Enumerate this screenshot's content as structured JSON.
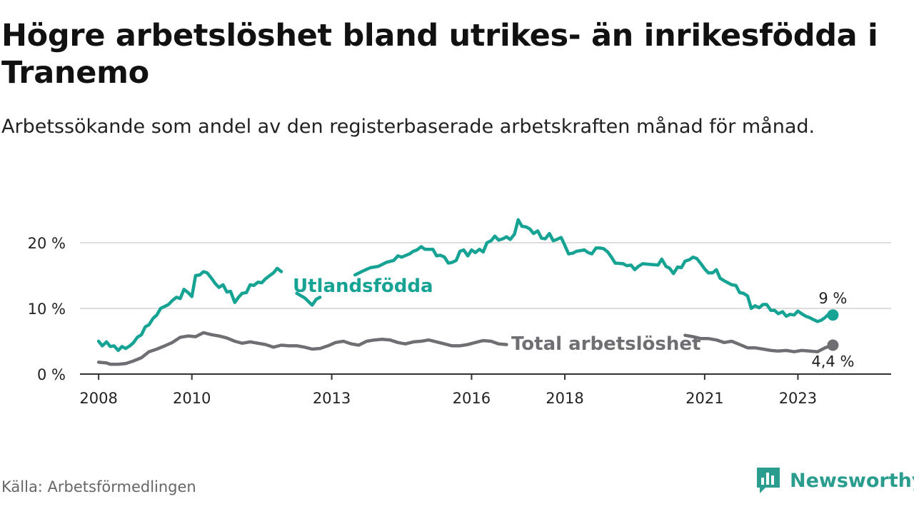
{
  "title": "Högre arbetslöshet bland utrikes- än inrikesfödda i Tranemo",
  "subtitle": "Arbetssökande som andel av den registerbaserade arbetskraften månad för månad.",
  "source": "Källa: Arbetsförmedlingen",
  "brand": {
    "name": "Newsworthy",
    "icon": "bar-chart-logo-icon"
  },
  "colors": {
    "foreign": "#16a394",
    "total": "#6e6e73",
    "grid": "#d4d4d4",
    "axis": "#333333",
    "brand": "#2a9d8f"
  },
  "chart_data": {
    "type": "line",
    "title": "Högre arbetslöshet bland utrikes- än inrikesfödda i Tranemo",
    "xlabel": "",
    "ylabel": "",
    "xlim": [
      2007.6,
      2025.0
    ],
    "ylim": [
      0,
      20
    ],
    "y_ticks": [
      0,
      10,
      20
    ],
    "y_tick_labels": [
      "0 %",
      "10 %",
      "20 %"
    ],
    "x_ticks": [
      2008,
      2010,
      2013,
      2016,
      2018,
      2021,
      2023
    ],
    "x_tick_labels": [
      "2008",
      "2010",
      "2013",
      "2016",
      "2018",
      "2021",
      "2023"
    ],
    "grid": true,
    "series": [
      {
        "name": "Utlandsfödda",
        "end_label": "9 %",
        "points": [
          [
            2008.0,
            5.0
          ],
          [
            2008.08,
            4.3
          ],
          [
            2008.17,
            4.9
          ],
          [
            2008.25,
            4.2
          ],
          [
            2008.33,
            4.3
          ],
          [
            2008.42,
            3.6
          ],
          [
            2008.5,
            4.2
          ],
          [
            2008.58,
            3.9
          ],
          [
            2008.67,
            4.3
          ],
          [
            2008.75,
            4.8
          ],
          [
            2008.83,
            5.6
          ],
          [
            2008.92,
            6.0
          ],
          [
            2009.0,
            7.2
          ],
          [
            2009.08,
            7.5
          ],
          [
            2009.17,
            8.5
          ],
          [
            2009.25,
            9.0
          ],
          [
            2009.33,
            10.0
          ],
          [
            2009.42,
            10.3
          ],
          [
            2009.5,
            10.6
          ],
          [
            2009.58,
            11.2
          ],
          [
            2009.67,
            11.7
          ],
          [
            2009.75,
            11.5
          ],
          [
            2009.83,
            12.9
          ],
          [
            2009.92,
            12.4
          ],
          [
            2010.0,
            11.8
          ],
          [
            2010.08,
            15.0
          ],
          [
            2010.17,
            15.1
          ],
          [
            2010.25,
            15.6
          ],
          [
            2010.33,
            15.4
          ],
          [
            2010.42,
            14.6
          ],
          [
            2010.5,
            13.8
          ],
          [
            2010.58,
            13.2
          ],
          [
            2010.67,
            13.6
          ],
          [
            2010.75,
            12.5
          ],
          [
            2010.83,
            12.6
          ],
          [
            2010.92,
            10.9
          ],
          [
            2011.0,
            11.7
          ],
          [
            2011.08,
            12.3
          ],
          [
            2011.17,
            12.4
          ],
          [
            2011.25,
            13.6
          ],
          [
            2011.33,
            13.5
          ],
          [
            2011.42,
            14.0
          ],
          [
            2011.5,
            13.9
          ],
          [
            2011.58,
            14.5
          ],
          [
            2011.67,
            15.0
          ],
          [
            2011.75,
            15.4
          ],
          [
            2011.83,
            16.1
          ],
          [
            2011.92,
            15.6
          ],
          [
            2012.25,
            12.3
          ],
          [
            2012.42,
            11.6
          ],
          [
            2012.58,
            10.5
          ],
          [
            2012.67,
            11.4
          ],
          [
            2012.75,
            11.7
          ],
          [
            2013.5,
            15.1
          ],
          [
            2013.67,
            15.7
          ],
          [
            2013.83,
            16.2
          ],
          [
            2014.0,
            16.4
          ],
          [
            2014.17,
            17.0
          ],
          [
            2014.33,
            17.3
          ],
          [
            2014.42,
            18.0
          ],
          [
            2014.5,
            17.8
          ],
          [
            2014.67,
            18.3
          ],
          [
            2014.75,
            18.7
          ],
          [
            2014.83,
            18.9
          ],
          [
            2014.92,
            19.4
          ],
          [
            2015.0,
            19.0
          ],
          [
            2015.17,
            19.0
          ],
          [
            2015.25,
            18.0
          ],
          [
            2015.33,
            18.1
          ],
          [
            2015.42,
            17.8
          ],
          [
            2015.5,
            16.9
          ],
          [
            2015.58,
            17.0
          ],
          [
            2015.67,
            17.3
          ],
          [
            2015.75,
            18.7
          ],
          [
            2015.83,
            18.9
          ],
          [
            2015.92,
            18.0
          ],
          [
            2016.0,
            18.9
          ],
          [
            2016.08,
            18.5
          ],
          [
            2016.17,
            19.0
          ],
          [
            2016.25,
            18.6
          ],
          [
            2016.33,
            20.0
          ],
          [
            2016.42,
            20.3
          ],
          [
            2016.5,
            21.0
          ],
          [
            2016.58,
            20.4
          ],
          [
            2016.67,
            20.6
          ],
          [
            2016.75,
            20.9
          ],
          [
            2016.83,
            20.5
          ],
          [
            2016.92,
            21.3
          ],
          [
            2017.0,
            23.5
          ],
          [
            2017.08,
            22.5
          ],
          [
            2017.17,
            22.4
          ],
          [
            2017.25,
            22.1
          ],
          [
            2017.33,
            21.4
          ],
          [
            2017.42,
            21.8
          ],
          [
            2017.5,
            20.7
          ],
          [
            2017.58,
            20.6
          ],
          [
            2017.67,
            21.4
          ],
          [
            2017.75,
            20.3
          ],
          [
            2017.83,
            20.5
          ],
          [
            2017.92,
            20.8
          ],
          [
            2018.0,
            19.6
          ],
          [
            2018.08,
            18.3
          ],
          [
            2018.17,
            18.4
          ],
          [
            2018.25,
            18.7
          ],
          [
            2018.42,
            18.9
          ],
          [
            2018.5,
            18.5
          ],
          [
            2018.58,
            18.3
          ],
          [
            2018.67,
            19.2
          ],
          [
            2018.75,
            19.2
          ],
          [
            2018.83,
            19.1
          ],
          [
            2018.92,
            18.6
          ],
          [
            2019.0,
            17.8
          ],
          [
            2019.08,
            16.9
          ],
          [
            2019.25,
            16.8
          ],
          [
            2019.33,
            16.5
          ],
          [
            2019.42,
            16.6
          ],
          [
            2019.5,
            15.9
          ],
          [
            2019.58,
            16.4
          ],
          [
            2019.67,
            16.8
          ],
          [
            2019.83,
            16.7
          ],
          [
            2020.0,
            16.6
          ],
          [
            2020.08,
            17.5
          ],
          [
            2020.17,
            16.4
          ],
          [
            2020.25,
            16.1
          ],
          [
            2020.33,
            15.3
          ],
          [
            2020.42,
            16.3
          ],
          [
            2020.5,
            16.2
          ],
          [
            2020.58,
            17.2
          ],
          [
            2020.67,
            17.4
          ],
          [
            2020.75,
            17.8
          ],
          [
            2020.83,
            17.6
          ],
          [
            2020.92,
            16.8
          ],
          [
            2021.0,
            16.0
          ],
          [
            2021.08,
            15.4
          ],
          [
            2021.17,
            15.4
          ],
          [
            2021.25,
            15.9
          ],
          [
            2021.33,
            14.6
          ],
          [
            2021.42,
            14.2
          ],
          [
            2021.5,
            13.9
          ],
          [
            2021.58,
            13.6
          ],
          [
            2021.67,
            13.5
          ],
          [
            2021.75,
            12.4
          ],
          [
            2021.83,
            12.3
          ],
          [
            2021.92,
            11.9
          ],
          [
            2022.0,
            10.0
          ],
          [
            2022.08,
            10.4
          ],
          [
            2022.17,
            10.1
          ],
          [
            2022.25,
            10.6
          ],
          [
            2022.33,
            10.6
          ],
          [
            2022.42,
            9.7
          ],
          [
            2022.5,
            9.7
          ],
          [
            2022.58,
            9.2
          ],
          [
            2022.67,
            9.5
          ],
          [
            2022.75,
            8.8
          ],
          [
            2022.83,
            9.1
          ],
          [
            2022.92,
            9.0
          ],
          [
            2023.0,
            9.6
          ],
          [
            2023.08,
            9.2
          ],
          [
            2023.17,
            8.8
          ],
          [
            2023.25,
            8.6
          ],
          [
            2023.33,
            8.3
          ],
          [
            2023.42,
            8.0
          ],
          [
            2023.5,
            8.2
          ],
          [
            2023.58,
            8.6
          ],
          [
            2023.67,
            9.2
          ],
          [
            2023.75,
            9.0
          ]
        ]
      },
      {
        "name": "Total arbetslöshet",
        "end_label": "4,4 %",
        "points": [
          [
            2008.0,
            1.8
          ],
          [
            2008.17,
            1.7
          ],
          [
            2008.25,
            1.5
          ],
          [
            2008.42,
            1.5
          ],
          [
            2008.58,
            1.6
          ],
          [
            2008.75,
            2.0
          ],
          [
            2008.92,
            2.5
          ],
          [
            2009.08,
            3.4
          ],
          [
            2009.25,
            3.8
          ],
          [
            2009.42,
            4.3
          ],
          [
            2009.58,
            4.8
          ],
          [
            2009.75,
            5.6
          ],
          [
            2009.92,
            5.8
          ],
          [
            2010.08,
            5.7
          ],
          [
            2010.25,
            6.3
          ],
          [
            2010.42,
            6.0
          ],
          [
            2010.58,
            5.8
          ],
          [
            2010.75,
            5.5
          ],
          [
            2010.92,
            5.0
          ],
          [
            2011.08,
            4.7
          ],
          [
            2011.25,
            4.9
          ],
          [
            2011.42,
            4.7
          ],
          [
            2011.58,
            4.5
          ],
          [
            2011.75,
            4.1
          ],
          [
            2011.92,
            4.4
          ],
          [
            2012.08,
            4.3
          ],
          [
            2012.25,
            4.3
          ],
          [
            2012.42,
            4.1
          ],
          [
            2012.58,
            3.8
          ],
          [
            2012.75,
            3.9
          ],
          [
            2012.92,
            4.3
          ],
          [
            2013.08,
            4.8
          ],
          [
            2013.25,
            5.0
          ],
          [
            2013.42,
            4.6
          ],
          [
            2013.58,
            4.4
          ],
          [
            2013.75,
            5.0
          ],
          [
            2013.92,
            5.2
          ],
          [
            2014.08,
            5.3
          ],
          [
            2014.25,
            5.2
          ],
          [
            2014.42,
            4.8
          ],
          [
            2014.58,
            4.6
          ],
          [
            2014.75,
            4.9
          ],
          [
            2014.92,
            5.0
          ],
          [
            2015.08,
            5.2
          ],
          [
            2015.25,
            4.9
          ],
          [
            2015.42,
            4.6
          ],
          [
            2015.58,
            4.3
          ],
          [
            2015.75,
            4.3
          ],
          [
            2015.92,
            4.5
          ],
          [
            2016.08,
            4.8
          ],
          [
            2016.25,
            5.1
          ],
          [
            2016.42,
            5.0
          ],
          [
            2016.58,
            4.6
          ],
          [
            2016.75,
            4.5
          ],
          [
            2020.58,
            5.9
          ],
          [
            2020.75,
            5.7
          ],
          [
            2020.92,
            5.4
          ],
          [
            2021.08,
            5.4
          ],
          [
            2021.25,
            5.2
          ],
          [
            2021.42,
            4.8
          ],
          [
            2021.58,
            5.0
          ],
          [
            2021.75,
            4.5
          ],
          [
            2021.92,
            4.0
          ],
          [
            2022.08,
            4.0
          ],
          [
            2022.25,
            3.8
          ],
          [
            2022.42,
            3.6
          ],
          [
            2022.58,
            3.5
          ],
          [
            2022.75,
            3.6
          ],
          [
            2022.92,
            3.4
          ],
          [
            2023.08,
            3.6
          ],
          [
            2023.25,
            3.5
          ],
          [
            2023.42,
            3.4
          ],
          [
            2023.58,
            4.0
          ],
          [
            2023.75,
            4.4
          ]
        ]
      }
    ]
  }
}
